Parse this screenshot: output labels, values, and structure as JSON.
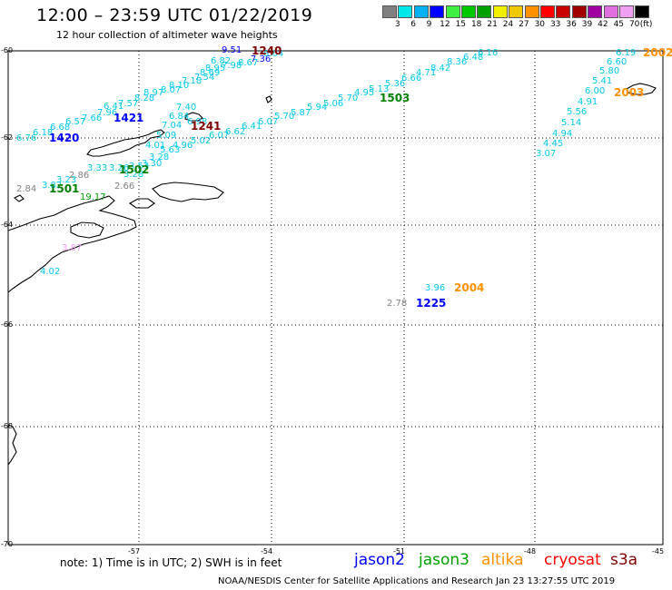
{
  "header": {
    "title": "12:00 – 23:59 UTC 01/22/2019",
    "subtitle": "12 hour collection of altimeter wave heights"
  },
  "colorbar": {
    "unit": "(ft)",
    "colors": [
      "#808080",
      "#00e8e8",
      "#00b0f0",
      "#0000ff",
      "#40f040",
      "#00c800",
      "#00a000",
      "#f0f000",
      "#f0c800",
      "#ff9000",
      "#ff0000",
      "#c80000",
      "#a00000",
      "#a000a0",
      "#e070e0",
      "#f0a0f0",
      "#000000"
    ],
    "labels": [
      "3",
      "6",
      "9",
      "12",
      "15",
      "18",
      "21",
      "24",
      "27",
      "30",
      "33",
      "36",
      "39",
      "42",
      "45",
      "70"
    ]
  },
  "map": {
    "lat_labels": [
      "-60",
      "-62",
      "-64",
      "-66",
      "-68",
      "-70"
    ],
    "lon_labels": [
      "-57",
      "-54",
      "-51",
      "-48",
      "-45"
    ],
    "swh_labels": [
      {
        "text": "6.76",
        "color": "#00c8e8"
      },
      {
        "text": "6.18",
        "color": "#00c8e8"
      },
      {
        "text": "6.68",
        "color": "#00c8e8"
      },
      {
        "text": "6.57",
        "color": "#00c8e8"
      },
      {
        "text": "7.66",
        "color": "#00c8e8"
      },
      {
        "text": "7.96",
        "color": "#00c8e8"
      },
      {
        "text": "6.41",
        "color": "#00c8e8"
      },
      {
        "text": "7.57",
        "color": "#00c8e8"
      },
      {
        "text": "8.28",
        "color": "#00c8e8"
      },
      {
        "text": "8.97",
        "color": "#00c8e8"
      },
      {
        "text": "8.07",
        "color": "#00c8e8"
      },
      {
        "text": "8.10",
        "color": "#00c8e8"
      },
      {
        "text": "7.18",
        "color": "#00c8e8"
      },
      {
        "text": "7.54",
        "color": "#00c8e8"
      },
      {
        "text": "8.69",
        "color": "#00c8e8"
      },
      {
        "text": "8.95",
        "color": "#00c8e8"
      },
      {
        "text": "6.82",
        "color": "#00c8e8"
      },
      {
        "text": "7.98",
        "color": "#00c8e8"
      },
      {
        "text": "8.67",
        "color": "#00c8e8"
      },
      {
        "text": "7.36",
        "color": "#0000ff"
      },
      {
        "text": "8.64",
        "color": "#00c8e8"
      },
      {
        "text": "9.51",
        "color": "#0000ff"
      },
      {
        "text": "7.40",
        "color": "#00c8e8"
      },
      {
        "text": "6.84",
        "color": "#00c8e8"
      },
      {
        "text": "6.98",
        "color": "#00c8e8"
      },
      {
        "text": "7.04",
        "color": "#00c8e8"
      },
      {
        "text": "5.09",
        "color": "#00c8e8"
      },
      {
        "text": "4.01",
        "color": "#00c8e8"
      },
      {
        "text": "5.63",
        "color": "#00c8e8"
      },
      {
        "text": "4.96",
        "color": "#00c8e8"
      },
      {
        "text": "5.02",
        "color": "#00c8e8"
      },
      {
        "text": "6.07",
        "color": "#00c8e8"
      },
      {
        "text": "6.62",
        "color": "#00c8e8"
      },
      {
        "text": "6.41",
        "color": "#00c8e8"
      },
      {
        "text": "6.07",
        "color": "#00c8e8"
      },
      {
        "text": "5.70",
        "color": "#00c8e8"
      },
      {
        "text": "5.87",
        "color": "#00c8e8"
      },
      {
        "text": "5.94",
        "color": "#00c8e8"
      },
      {
        "text": "5.06",
        "color": "#00c8e8"
      },
      {
        "text": "5.70",
        "color": "#00c8e8"
      },
      {
        "text": "4.95",
        "color": "#00c8e8"
      },
      {
        "text": "5.13",
        "color": "#00c8e8"
      },
      {
        "text": "5.36",
        "color": "#00c8e8"
      },
      {
        "text": "6.66",
        "color": "#00c8e8"
      },
      {
        "text": "4.71",
        "color": "#00c8e8"
      },
      {
        "text": "8.42",
        "color": "#00c8e8"
      },
      {
        "text": "8.36",
        "color": "#00c8e8"
      },
      {
        "text": "6.48",
        "color": "#00c8e8"
      },
      {
        "text": "6.16",
        "color": "#00c8e8"
      },
      {
        "text": "3.28",
        "color": "#00c8e8"
      },
      {
        "text": "3.30",
        "color": "#00c8e8"
      },
      {
        "text": "3.53",
        "color": "#00c8e8"
      },
      {
        "text": "3.33",
        "color": "#00c8e8"
      },
      {
        "text": "3.26",
        "color": "#00c8e8"
      },
      {
        "text": "3.28",
        "color": "#00c8e8"
      },
      {
        "text": "3.23",
        "color": "#00c8e8"
      },
      {
        "text": "2.86",
        "color": "#808080"
      },
      {
        "text": "2.84",
        "color": "#808080"
      },
      {
        "text": "2.66",
        "color": "#808080"
      },
      {
        "text": "3.82",
        "color": "#00c8e8"
      },
      {
        "text": "19.17",
        "color": "#00a000"
      },
      {
        "text": "3.87",
        "color": "#f0a0f0"
      },
      {
        "text": "4.02",
        "color": "#00c8e8"
      },
      {
        "text": "6.19",
        "color": "#00c8e8"
      },
      {
        "text": "6.60",
        "color": "#00c8e8"
      },
      {
        "text": "5.80",
        "color": "#00c8e8"
      },
      {
        "text": "5.41",
        "color": "#00c8e8"
      },
      {
        "text": "6.00",
        "color": "#00c8e8"
      },
      {
        "text": "4.91",
        "color": "#00c8e8"
      },
      {
        "text": "5.56",
        "color": "#00c8e8"
      },
      {
        "text": "5.14",
        "color": "#00c8e8"
      },
      {
        "text": "4.94",
        "color": "#00c8e8"
      },
      {
        "text": "4.45",
        "color": "#00c8e8"
      },
      {
        "text": "3.07",
        "color": "#00c8e8"
      },
      {
        "text": "3.96",
        "color": "#00c8e8"
      },
      {
        "text": "2.78",
        "color": "#808080"
      }
    ],
    "pass_labels": [
      {
        "text": "1420",
        "color": "#0000ff"
      },
      {
        "text": "1421",
        "color": "#0000ff"
      },
      {
        "text": "1240",
        "color": "#800000"
      },
      {
        "text": "1241",
        "color": "#800000"
      },
      {
        "text": "1503",
        "color": "#008000"
      },
      {
        "text": "1502",
        "color": "#008000"
      },
      {
        "text": "1501",
        "color": "#008000"
      },
      {
        "text": "2002",
        "color": "#ff9000"
      },
      {
        "text": "2003",
        "color": "#ff9000"
      },
      {
        "text": "2004",
        "color": "#ff9000"
      },
      {
        "text": "1225",
        "color": "#0000ff"
      }
    ]
  },
  "footer": {
    "note": "note:  1) Time is in UTC;  2) SWH is in feet",
    "satellites": [
      {
        "name": "jason2",
        "color": "#0000ff"
      },
      {
        "name": "jason3",
        "color": "#00a000"
      },
      {
        "name": "altika",
        "color": "#ff9000"
      },
      {
        "name": "cryosat",
        "color": "#ff0000"
      },
      {
        "name": "s3a",
        "color": "#800000"
      }
    ],
    "credit": "NOAA/NESDIS Center for Satellite Applications and Research      Jan 23 13:27:55 UTC 2019"
  }
}
